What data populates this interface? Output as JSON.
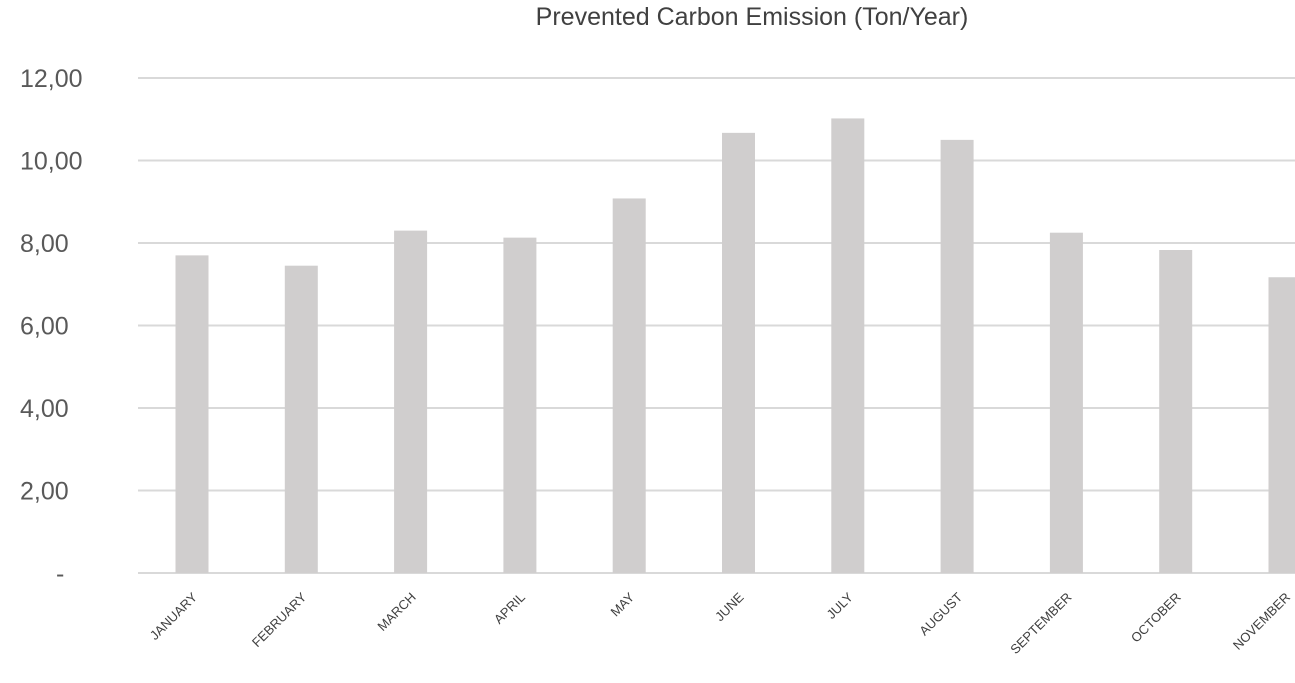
{
  "chart_data": {
    "type": "bar",
    "title": "Prevented Carbon Emission (Ton/Year)",
    "xlabel": "",
    "ylabel": "",
    "categories": [
      "JANUARY",
      "FEBRUARY",
      "MARCH",
      "APRIL",
      "MAY",
      "JUNE",
      "JULY",
      "AUGUST",
      "SEPTEMBER",
      "OCTOBER",
      "NOVEMBER"
    ],
    "values": [
      7.7,
      7.45,
      8.3,
      8.13,
      9.08,
      10.67,
      11.02,
      10.5,
      8.25,
      7.83,
      7.17
    ],
    "ylim": [
      0,
      12
    ],
    "yticks": [
      0,
      2,
      4,
      6,
      8,
      10,
      12
    ],
    "ytick_labels": [
      "-",
      "2,00",
      "4,00",
      "6,00",
      "8,00",
      "10,00",
      "12,00"
    ],
    "grid": true,
    "legend": "none",
    "bar_color": "#d0cece",
    "grid_color": "#d9d9d9"
  }
}
